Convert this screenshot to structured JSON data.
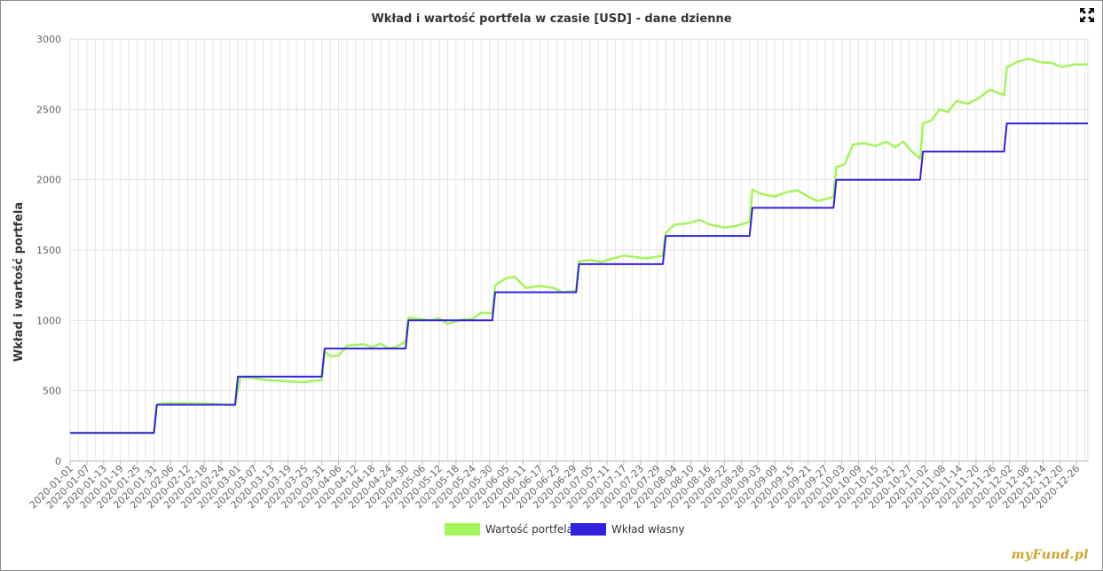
{
  "chart_data": {
    "type": "line",
    "title": "Wkład i wartość portfela w czasie [USD] - dane dzienne",
    "ylabel": "Wkład i wartość portfela",
    "xlabel": "",
    "ylim": [
      0,
      3000
    ],
    "yticks": [
      0,
      500,
      1000,
      1500,
      2000,
      2500,
      3000
    ],
    "xrange": [
      "2020-01-01",
      "2020-12-30"
    ],
    "xticks": [
      "2020-01-01",
      "2020-01-07",
      "2020-01-13",
      "2020-01-19",
      "2020-01-25",
      "2020-01-31",
      "2020-02-06",
      "2020-02-12",
      "2020-02-18",
      "2020-02-24",
      "2020-03-01",
      "2020-03-07",
      "2020-03-13",
      "2020-03-19",
      "2020-03-25",
      "2020-03-31",
      "2020-04-06",
      "2020-04-12",
      "2020-04-18",
      "2020-04-24",
      "2020-04-30",
      "2020-05-06",
      "2020-05-12",
      "2020-05-18",
      "2020-05-24",
      "2020-05-30",
      "2020-06-05",
      "2020-06-11",
      "2020-06-17",
      "2020-06-23",
      "2020-06-29",
      "2020-07-05",
      "2020-07-11",
      "2020-07-17",
      "2020-07-23",
      "2020-07-29",
      "2020-08-04",
      "2020-08-10",
      "2020-08-16",
      "2020-08-22",
      "2020-08-28",
      "2020-09-03",
      "2020-09-09",
      "2020-09-15",
      "2020-09-21",
      "2020-09-27",
      "2020-10-03",
      "2020-10-09",
      "2020-10-15",
      "2020-10-21",
      "2020-10-27",
      "2020-11-02",
      "2020-11-08",
      "2020-11-14",
      "2020-11-20",
      "2020-11-26",
      "2020-12-02",
      "2020-12-08",
      "2020-12-14",
      "2020-12-20",
      "2020-12-26"
    ],
    "grid": true,
    "legend": "bottom-center",
    "series": [
      {
        "name": "Wartość portfela",
        "color": "#a3f55a",
        "points": [
          [
            "2020-01-01",
            200
          ],
          [
            "2020-01-31",
            200
          ],
          [
            "2020-02-01",
            400
          ],
          [
            "2020-02-03",
            410
          ],
          [
            "2020-02-10",
            412
          ],
          [
            "2020-02-20",
            408
          ],
          [
            "2020-02-29",
            395
          ],
          [
            "2020-03-02",
            600
          ],
          [
            "2020-03-06",
            590
          ],
          [
            "2020-03-12",
            575
          ],
          [
            "2020-03-18",
            568
          ],
          [
            "2020-03-24",
            560
          ],
          [
            "2020-03-31",
            575
          ],
          [
            "2020-04-01",
            780
          ],
          [
            "2020-04-03",
            745
          ],
          [
            "2020-04-06",
            750
          ],
          [
            "2020-04-09",
            820
          ],
          [
            "2020-04-15",
            830
          ],
          [
            "2020-04-18",
            810
          ],
          [
            "2020-04-21",
            835
          ],
          [
            "2020-04-24",
            800
          ],
          [
            "2020-04-27",
            815
          ],
          [
            "2020-04-30",
            850
          ],
          [
            "2020-05-01",
            1020
          ],
          [
            "2020-05-05",
            1010
          ],
          [
            "2020-05-09",
            1000
          ],
          [
            "2020-05-12",
            1015
          ],
          [
            "2020-05-15",
            975
          ],
          [
            "2020-05-20",
            1005
          ],
          [
            "2020-05-24",
            1010
          ],
          [
            "2020-05-27",
            1055
          ],
          [
            "2020-05-31",
            1050
          ],
          [
            "2020-06-01",
            1250
          ],
          [
            "2020-06-05",
            1300
          ],
          [
            "2020-06-08",
            1310
          ],
          [
            "2020-06-12",
            1230
          ],
          [
            "2020-06-17",
            1245
          ],
          [
            "2020-06-22",
            1230
          ],
          [
            "2020-06-25",
            1200
          ],
          [
            "2020-06-30",
            1210
          ],
          [
            "2020-07-01",
            1420
          ],
          [
            "2020-07-05",
            1430
          ],
          [
            "2020-07-09",
            1415
          ],
          [
            "2020-07-13",
            1440
          ],
          [
            "2020-07-17",
            1460
          ],
          [
            "2020-07-21",
            1450
          ],
          [
            "2020-07-25",
            1440
          ],
          [
            "2020-07-31",
            1460
          ],
          [
            "2020-08-01",
            1620
          ],
          [
            "2020-08-04",
            1680
          ],
          [
            "2020-08-09",
            1690
          ],
          [
            "2020-08-13",
            1715
          ],
          [
            "2020-08-17",
            1680
          ],
          [
            "2020-08-22",
            1660
          ],
          [
            "2020-08-26",
            1670
          ],
          [
            "2020-08-31",
            1700
          ],
          [
            "2020-09-01",
            1930
          ],
          [
            "2020-09-04",
            1900
          ],
          [
            "2020-09-09",
            1880
          ],
          [
            "2020-09-13",
            1910
          ],
          [
            "2020-09-17",
            1925
          ],
          [
            "2020-09-21",
            1880
          ],
          [
            "2020-09-24",
            1850
          ],
          [
            "2020-09-27",
            1860
          ],
          [
            "2020-09-30",
            1880
          ],
          [
            "2020-10-01",
            2090
          ],
          [
            "2020-10-04",
            2110
          ],
          [
            "2020-10-07",
            2250
          ],
          [
            "2020-10-11",
            2260
          ],
          [
            "2020-10-15",
            2240
          ],
          [
            "2020-10-19",
            2270
          ],
          [
            "2020-10-22",
            2230
          ],
          [
            "2020-10-25",
            2270
          ],
          [
            "2020-10-28",
            2200
          ],
          [
            "2020-10-31",
            2150
          ],
          [
            "2020-11-01",
            2400
          ],
          [
            "2020-11-04",
            2420
          ],
          [
            "2020-11-07",
            2500
          ],
          [
            "2020-11-10",
            2480
          ],
          [
            "2020-11-13",
            2560
          ],
          [
            "2020-11-17",
            2540
          ],
          [
            "2020-11-21",
            2580
          ],
          [
            "2020-11-25",
            2640
          ],
          [
            "2020-11-30",
            2600
          ],
          [
            "2020-12-01",
            2800
          ],
          [
            "2020-12-05",
            2840
          ],
          [
            "2020-12-09",
            2860
          ],
          [
            "2020-12-13",
            2835
          ],
          [
            "2020-12-17",
            2830
          ],
          [
            "2020-12-21",
            2800
          ],
          [
            "2020-12-25",
            2820
          ],
          [
            "2020-12-30",
            2820
          ]
        ]
      },
      {
        "name": "Wkład własny",
        "color": "#3322dd",
        "points": [
          [
            "2020-01-01",
            200
          ],
          [
            "2020-01-31",
            200
          ],
          [
            "2020-02-01",
            400
          ],
          [
            "2020-02-29",
            400
          ],
          [
            "2020-03-01",
            600
          ],
          [
            "2020-03-31",
            600
          ],
          [
            "2020-04-01",
            800
          ],
          [
            "2020-04-30",
            800
          ],
          [
            "2020-05-01",
            1000
          ],
          [
            "2020-05-31",
            1000
          ],
          [
            "2020-06-01",
            1200
          ],
          [
            "2020-06-30",
            1200
          ],
          [
            "2020-07-01",
            1400
          ],
          [
            "2020-07-31",
            1400
          ],
          [
            "2020-08-01",
            1600
          ],
          [
            "2020-08-31",
            1600
          ],
          [
            "2020-09-01",
            1800
          ],
          [
            "2020-09-30",
            1800
          ],
          [
            "2020-10-01",
            2000
          ],
          [
            "2020-10-31",
            2000
          ],
          [
            "2020-11-01",
            2200
          ],
          [
            "2020-11-30",
            2200
          ],
          [
            "2020-12-01",
            2400
          ],
          [
            "2020-12-30",
            2400
          ]
        ]
      }
    ]
  },
  "watermark": "myFund.pl",
  "icons": {
    "expand": "expand-arrows-icon"
  }
}
